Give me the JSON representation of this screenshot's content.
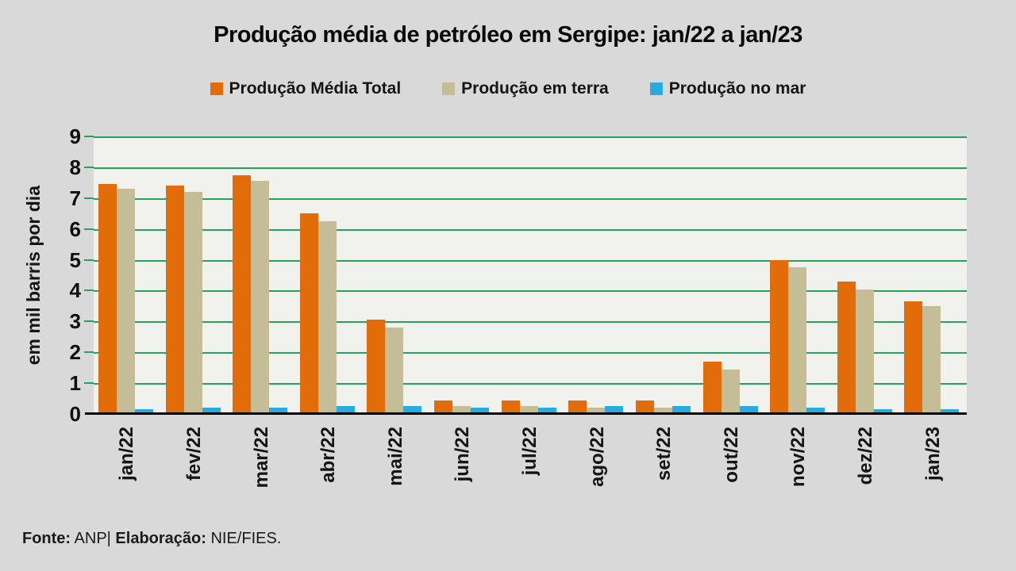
{
  "title": "Produção média de petróleo em Sergipe:  jan/22 a jan/23",
  "chart_data": {
    "type": "bar",
    "title": "Produção média de petróleo em Sergipe: jan/22 a jan/23",
    "categories": [
      "jan/22",
      "fev/22",
      "mar/22",
      "abr/22",
      "mai/22",
      "jun/22",
      "jul/22",
      "ago/22",
      "set/22",
      "out/22",
      "nov/22",
      "dez/22",
      "jan/23"
    ],
    "series": [
      {
        "name": "Produção Média Total",
        "color": "#E36C0A",
        "values": [
          7.45,
          7.4,
          7.75,
          6.5,
          3.05,
          0.45,
          0.45,
          0.45,
          0.45,
          1.7,
          5.0,
          4.3,
          3.65
        ]
      },
      {
        "name": "Produção em terra",
        "color": "#C4BD97",
        "values": [
          7.3,
          7.2,
          7.55,
          6.25,
          2.8,
          0.25,
          0.25,
          0.2,
          0.2,
          1.45,
          4.75,
          4.05,
          3.5
        ]
      },
      {
        "name": "Produção no mar",
        "color": "#29ABE2",
        "values": [
          0.15,
          0.2,
          0.2,
          0.25,
          0.25,
          0.2,
          0.2,
          0.25,
          0.25,
          0.25,
          0.2,
          0.15,
          0.15
        ]
      }
    ],
    "xlabel": "",
    "ylabel": "em mil barris por dia",
    "ylim": [
      0,
      9
    ],
    "yticks": [
      0,
      1,
      2,
      3,
      4,
      5,
      6,
      7,
      8,
      9
    ],
    "grid": "horizontal-green",
    "legend_position": "top"
  },
  "colors": {
    "page_bg": "#D9D9D9",
    "plot_bg": "#F1F1EE",
    "gridline": "#23A35C",
    "baseline": "#000000"
  },
  "footer": {
    "source_label": "Fonte:",
    "source_value": " ANP| ",
    "elaboration_label": "Elaboração:",
    "elaboration_value": " NIE/FIES."
  }
}
